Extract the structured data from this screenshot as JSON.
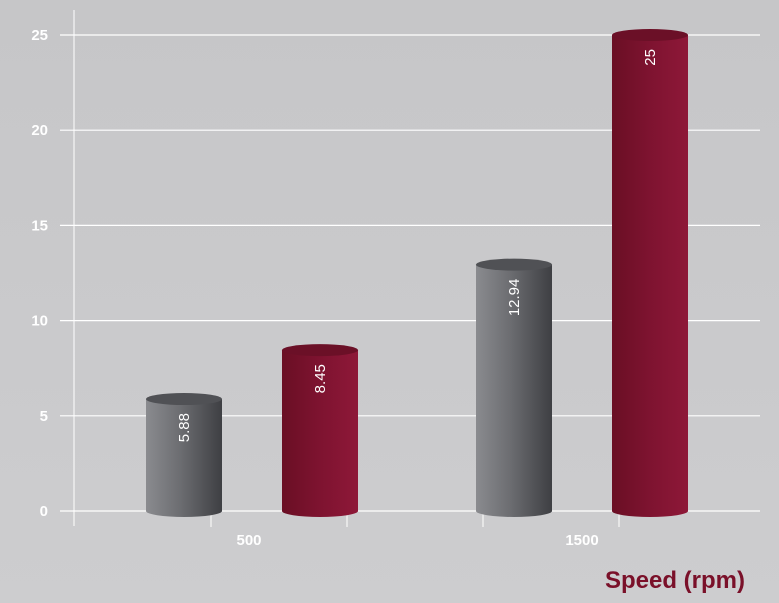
{
  "chart_data": {
    "type": "bar",
    "style": "3d-cylinder",
    "categories": [
      "500",
      "1500"
    ],
    "series": [
      {
        "values": [
          5.88,
          12.94
        ],
        "color": "#6f7074"
      },
      {
        "values": [
          8.45,
          25
        ],
        "color": "#7e1330"
      }
    ],
    "xlabel": "Speed (rpm)",
    "ylabel": "",
    "ylim": [
      0,
      25
    ],
    "yticks": [
      0,
      5,
      10,
      15,
      20,
      25
    ],
    "grid": true,
    "legend": "none",
    "data_labels": true
  },
  "colors": {
    "background": "#c9c9cb",
    "grid": "#ffffff",
    "axis_title": "#7a1029"
  }
}
